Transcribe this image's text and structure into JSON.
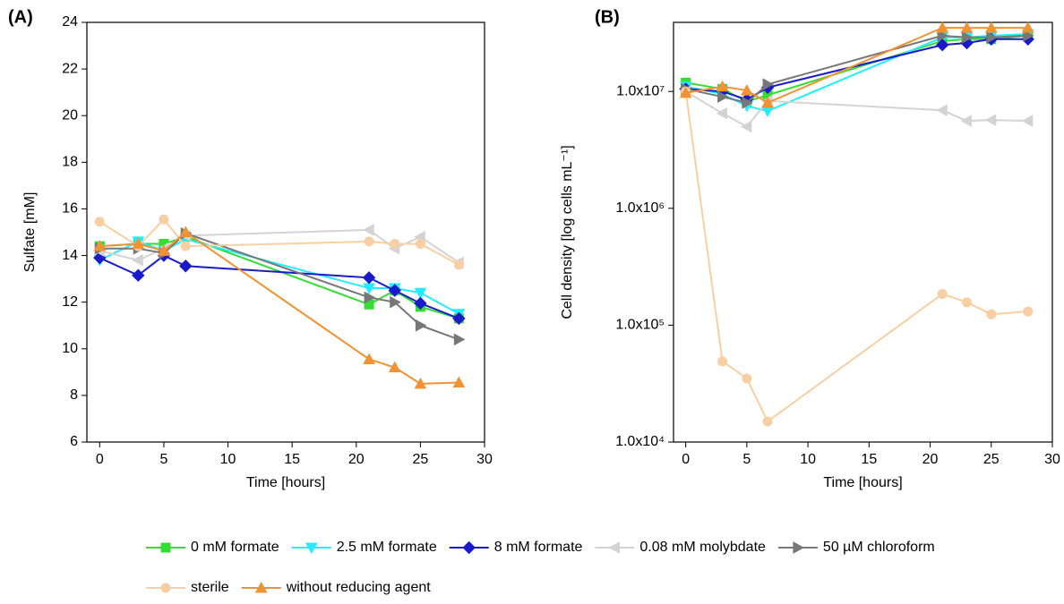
{
  "chart_data": [
    {
      "type": "line",
      "panel": "(A)",
      "x_label": "Time [hours]",
      "y_label": "Sulfate [mM]",
      "xlim": [
        -1,
        30
      ],
      "xticks": [
        0,
        5,
        10,
        15,
        20,
        25,
        30
      ],
      "ylim": [
        6,
        24
      ],
      "yticks": [
        6,
        8,
        10,
        12,
        14,
        16,
        18,
        20,
        22,
        24
      ],
      "x": [
        0,
        3,
        5,
        6.7,
        21,
        23,
        25,
        28
      ],
      "series": [
        {
          "name": "0 mM formate",
          "color": "#33dd33",
          "marker": "square",
          "values": [
            14.4,
            14.5,
            14.5,
            14.8,
            11.9,
            12.5,
            11.8,
            11.3
          ]
        },
        {
          "name": "2.5 mM formate",
          "color": "#22eeff",
          "marker": "triangle-down",
          "values": [
            13.8,
            14.6,
            14.2,
            14.7,
            12.6,
            12.6,
            12.4,
            11.5
          ]
        },
        {
          "name": "8 mM formate",
          "color": "#1a1acc",
          "marker": "diamond",
          "values": [
            13.9,
            13.15,
            14.0,
            13.55,
            13.05,
            12.5,
            11.95,
            11.3
          ]
        },
        {
          "name": "0.08 mM molybdate",
          "color": "#d3d3d3",
          "marker": "triangle-left",
          "values": [
            14.2,
            13.8,
            14.3,
            14.85,
            15.1,
            14.3,
            14.8,
            13.7
          ]
        },
        {
          "name": "50 µM chloroform",
          "color": "#777777",
          "marker": "triangle-right",
          "values": [
            14.3,
            14.3,
            14.1,
            14.95,
            12.2,
            12.0,
            11.0,
            10.4
          ]
        },
        {
          "name": "sterile",
          "color": "#f7cfa3",
          "marker": "circle",
          "values": [
            15.45,
            14.4,
            15.55,
            14.4,
            14.6,
            14.5,
            14.5,
            13.6
          ]
        },
        {
          "name": "without reducing agent",
          "color": "#f39233",
          "marker": "triangle-up",
          "values": [
            14.4,
            14.5,
            14.2,
            15.0,
            9.55,
            9.2,
            8.5,
            8.55
          ]
        }
      ]
    },
    {
      "type": "line",
      "panel": "(B)",
      "x_label": "Time [hours]",
      "y_label": "Cell density [log cells mL⁻¹]",
      "log_y": true,
      "xlim": [
        -1,
        30
      ],
      "xticks": [
        0,
        5,
        10,
        15,
        20,
        25,
        30
      ],
      "ylim": [
        10000,
        39000000
      ],
      "yticks": [
        {
          "value": 10000,
          "label": "1.0x10⁴"
        },
        {
          "value": 100000,
          "label": "1.0x10⁵"
        },
        {
          "value": 1000000,
          "label": "1.0x10⁶"
        },
        {
          "value": 10000000,
          "label": "1.0x10⁷"
        }
      ],
      "x": [
        0,
        3,
        5,
        6.7,
        21,
        23,
        25,
        28
      ],
      "series": [
        {
          "color": "#33dd33",
          "marker": "square",
          "values": [
            11900000,
            10500000,
            8200000,
            9300000,
            27000000,
            28000000,
            28000000,
            30000000
          ]
        },
        {
          "color": "#22eeff",
          "marker": "triangle-down",
          "values": [
            11000000,
            9500000,
            7500000,
            6800000,
            29000000,
            29000000,
            30000000,
            31000000
          ]
        },
        {
          "color": "#1a1acc",
          "marker": "diamond",
          "values": [
            10500000,
            10000000,
            8500000,
            10800000,
            25000000,
            26000000,
            28000000,
            28000000
          ]
        },
        {
          "color": "#d3d3d3",
          "marker": "triangle-left",
          "values": [
            10000000,
            6500000,
            5000000,
            8300000,
            6900000,
            5600000,
            5700000,
            5600000
          ]
        },
        {
          "color": "#777777",
          "marker": "triangle-right",
          "values": [
            10500000,
            9000000,
            8000000,
            11500000,
            30000000,
            29000000,
            29000000,
            30000000
          ]
        },
        {
          "color": "#f7cfa3",
          "marker": "circle",
          "values": [
            10000000,
            49000,
            35000,
            15000,
            185000,
            157000,
            124000,
            131000
          ]
        },
        {
          "color": "#f39233",
          "marker": "triangle-up",
          "values": [
            9700000,
            11000000,
            10200000,
            8000000,
            35000000,
            35000000,
            35000000,
            35000000
          ]
        }
      ]
    }
  ]
}
